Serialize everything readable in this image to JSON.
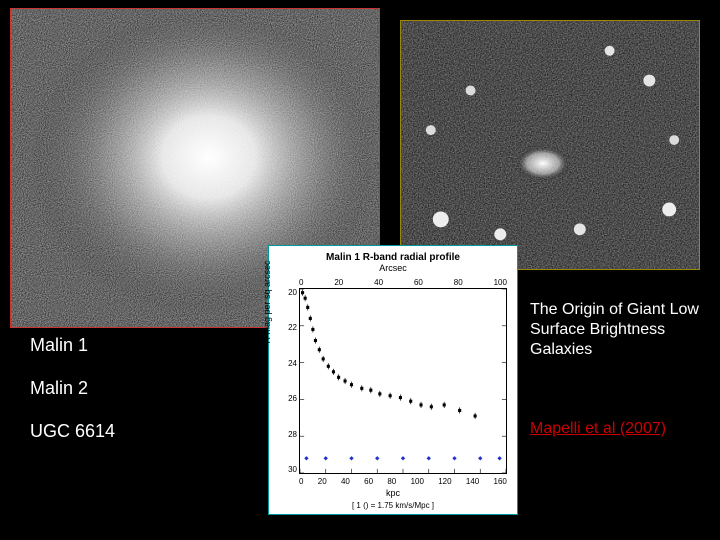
{
  "galaxy_left": {
    "name": "Malin 1",
    "border_color": "#cc3333"
  },
  "galaxy_right": {
    "name": "Malin 2 / UGC 6614 field",
    "border_color": "#998800"
  },
  "labels": {
    "items": [
      "Malin 1",
      "Malin 2",
      "UGC 6614"
    ],
    "color": "#ffffff",
    "fontsize": 18
  },
  "title": {
    "text": "The Origin of Giant Low Surface Brightness Galaxies",
    "color": "#ffffff",
    "fontsize": 16
  },
  "citation": {
    "text": "Mapelli et al (2007)",
    "color": "#cc0000",
    "fontsize": 16
  },
  "chart": {
    "type": "scatter-line",
    "title": "Malin 1 R-band radial profile",
    "subtitle": "Arcsec",
    "background_color": "#ffffff",
    "border_color": "#009999",
    "x_top": {
      "ticks": [
        0,
        20,
        40,
        60,
        80,
        100
      ]
    },
    "x_bottom": {
      "label": "kpc",
      "ticks": [
        0,
        20,
        40,
        60,
        80,
        100,
        120,
        140,
        160
      ],
      "lim": [
        0,
        160
      ],
      "note": "[ 1 () = 1.75 km/s/Mpc ]"
    },
    "y": {
      "label": "R mag per sq arcsec",
      "ticks": [
        20,
        22,
        24,
        26,
        28,
        30
      ],
      "lim": [
        30,
        20
      ],
      "inverted": true
    },
    "series_black": {
      "marker": "square",
      "color": "#000000",
      "size": 3,
      "points": [
        [
          2,
          20.2
        ],
        [
          4,
          20.5
        ],
        [
          6,
          21.0
        ],
        [
          8,
          21.6
        ],
        [
          10,
          22.2
        ],
        [
          12,
          22.8
        ],
        [
          15,
          23.3
        ],
        [
          18,
          23.8
        ],
        [
          22,
          24.2
        ],
        [
          26,
          24.5
        ],
        [
          30,
          24.8
        ],
        [
          35,
          25.0
        ],
        [
          40,
          25.2
        ],
        [
          48,
          25.4
        ],
        [
          55,
          25.5
        ],
        [
          62,
          25.7
        ],
        [
          70,
          25.8
        ],
        [
          78,
          25.9
        ],
        [
          86,
          26.1
        ],
        [
          94,
          26.3
        ],
        [
          102,
          26.4
        ],
        [
          112,
          26.3
        ],
        [
          124,
          26.6
        ],
        [
          136,
          26.9
        ]
      ]
    },
    "series_blue": {
      "marker": "diamond",
      "color": "#2233cc",
      "size": 3,
      "points": [
        [
          5,
          29.2
        ],
        [
          20,
          29.2
        ],
        [
          40,
          29.2
        ],
        [
          60,
          29.2
        ],
        [
          80,
          29.2
        ],
        [
          100,
          29.2
        ],
        [
          120,
          29.2
        ],
        [
          140,
          29.2
        ],
        [
          155,
          29.2
        ]
      ]
    },
    "title_fontsize": 10,
    "label_fontsize": 9,
    "tick_fontsize": 8
  }
}
